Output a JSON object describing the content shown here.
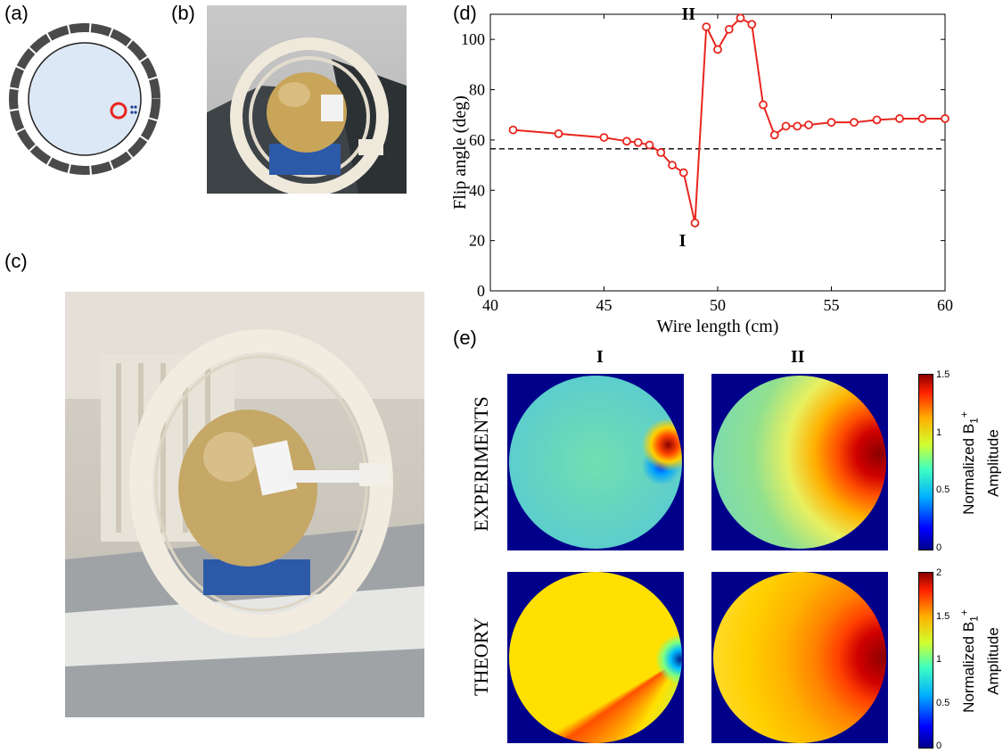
{
  "panel_labels": {
    "a": "(a)",
    "b": "(b)",
    "c": "(c)",
    "d": "(d)",
    "e": "(e)"
  },
  "colors": {
    "series": "#e8261f",
    "dashed": "#000000",
    "phantom": "#dce8f5",
    "coil": "#4a4a4a",
    "loop": "#e8261f",
    "wires": "#1f3f8f"
  },
  "chart_data": {
    "type": "line",
    "xlabel": "Wire length (cm)",
    "ylabel": "Flip angle (deg)",
    "xlim": [
      40,
      60
    ],
    "ylim": [
      0,
      110
    ],
    "xticks": [
      40,
      45,
      50,
      55,
      60
    ],
    "yticks": [
      0,
      20,
      40,
      60,
      80,
      100
    ],
    "grid": false,
    "series": [
      {
        "x": [
          41,
          43,
          45,
          46,
          46.5,
          47,
          47.5,
          48,
          48.5,
          49,
          49.5,
          50,
          50.5,
          51,
          51.5,
          52,
          52.5,
          53,
          53.5,
          54,
          55,
          56,
          57,
          58,
          59,
          60
        ],
        "y": [
          64,
          62.5,
          61,
          59.5,
          59,
          58,
          55,
          50,
          47,
          27,
          105,
          96,
          104,
          108.5,
          106,
          74,
          62,
          65.5,
          65.5,
          66,
          67,
          67,
          68,
          68.5,
          68.5,
          68.5
        ]
      }
    ],
    "reference_line": {
      "y": 56.5,
      "style": "dashed"
    },
    "annotations": [
      {
        "text": "I",
        "x": 49,
        "y": 27
      },
      {
        "text": "II",
        "x": 49.5,
        "y": 105
      }
    ]
  },
  "heatmaps": {
    "col_labels": [
      "I",
      "II"
    ],
    "row_labels": [
      "EXPERIMENTS",
      "THEORY"
    ],
    "colorbars": [
      {
        "label_line1": "Normalized B",
        "sub": "1",
        "sup": "+",
        "label_line2": "Amplitude",
        "ticks": [
          "0",
          "0.5",
          "1",
          "1.5"
        ]
      },
      {
        "label_line1": "Normalized B",
        "sub": "1",
        "sup": "+",
        "label_line2": "Amplitude",
        "ticks": [
          "0",
          "0.5",
          "1",
          "1.5",
          "2"
        ]
      }
    ]
  }
}
